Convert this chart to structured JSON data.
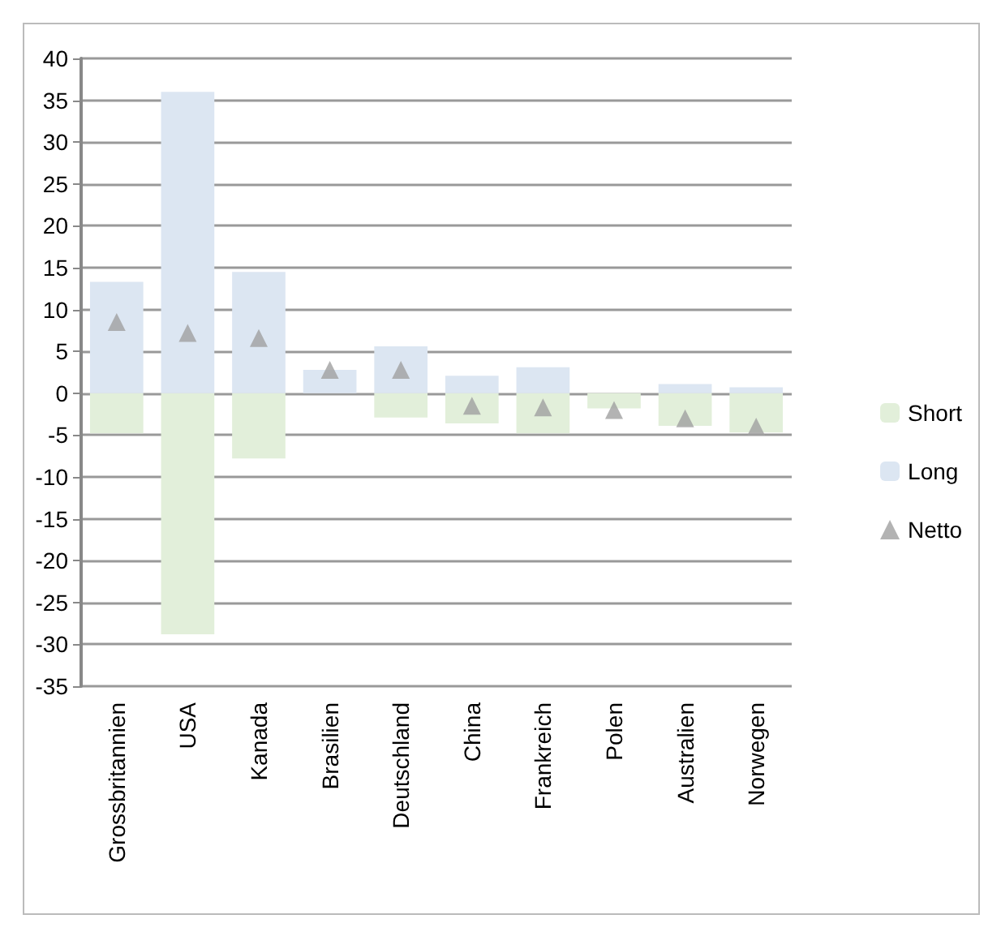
{
  "chart_data": {
    "type": "bar",
    "stacked": true,
    "categories": [
      "Grossbritannien",
      "USA",
      "Kanada",
      "Brasilien",
      "Deutschland",
      "China",
      "Frankreich",
      "Polen",
      "Australien",
      "Norwegen"
    ],
    "series": [
      {
        "name": "Short",
        "color": "#e2efda",
        "values": [
          -4.8,
          -28.8,
          -7.8,
          null,
          -2.9,
          -3.6,
          -4.8,
          -1.8,
          -3.9,
          -4.7
        ]
      },
      {
        "name": "Long",
        "color": "#dce6f2",
        "values": [
          13.3,
          36,
          14.5,
          2.8,
          5.6,
          2.1,
          3.1,
          null,
          1.1,
          0.7
        ]
      },
      {
        "name": "Netto",
        "type": "scatter",
        "color": "#a0a0a0",
        "marker": "triangle",
        "values": [
          8.5,
          7.2,
          6.6,
          2.8,
          2.8,
          -1.5,
          -1.7,
          -2.0,
          -3.0,
          -4.0
        ]
      }
    ],
    "ylim": [
      -35,
      40
    ],
    "yticks": [
      -35,
      -30,
      -25,
      -20,
      -15,
      -10,
      -5,
      0,
      5,
      10,
      15,
      20,
      25,
      30,
      35,
      40
    ],
    "grid": "y",
    "legend": "right"
  }
}
